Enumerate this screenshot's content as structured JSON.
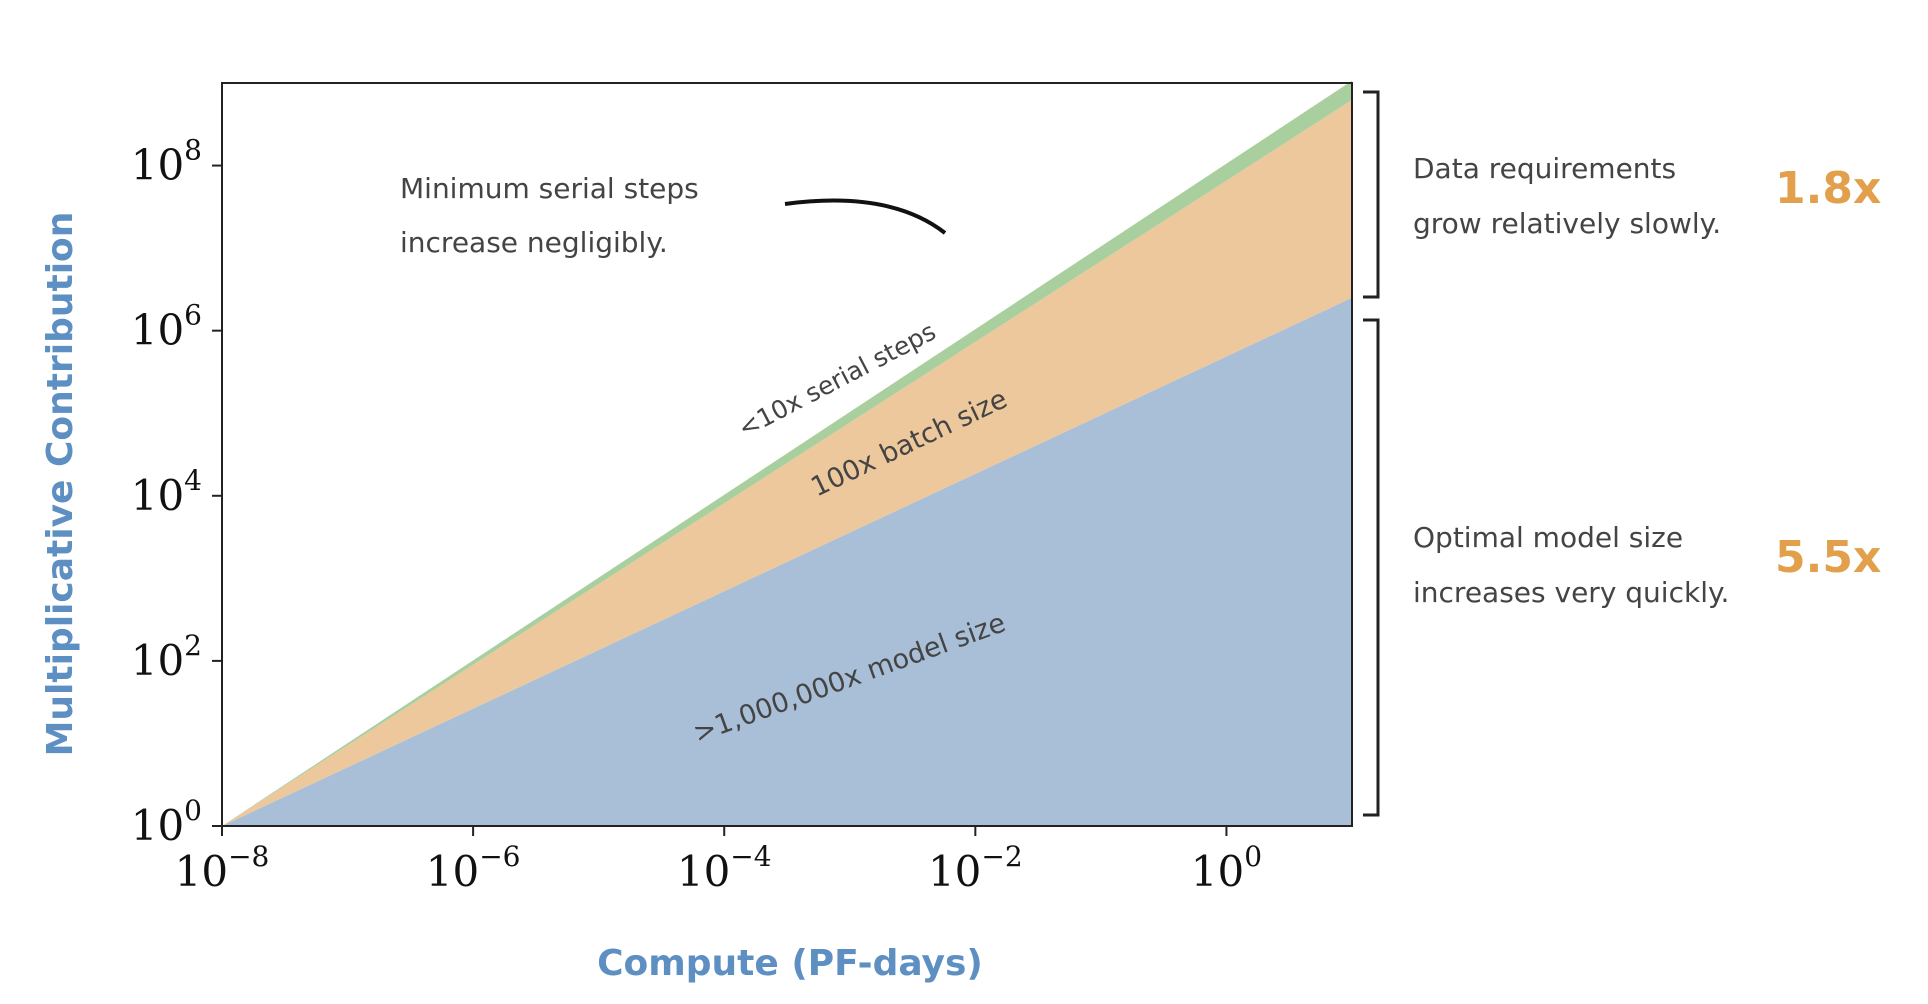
{
  "chart_data": {
    "type": "area",
    "stacked": true,
    "xlabel": "Compute (PF-days)",
    "ylabel": "Multiplicative Contribution",
    "x_scale": "log",
    "y_scale": "log",
    "xlim": [
      1e-08,
      10
    ],
    "ylim": [
      1,
      1000000000.0
    ],
    "grid": false,
    "x_ticks": [
      {
        "value": 1e-08,
        "base": "10",
        "exp": "−8"
      },
      {
        "value": 1e-06,
        "base": "10",
        "exp": "−6"
      },
      {
        "value": 0.0001,
        "base": "10",
        "exp": "−4"
      },
      {
        "value": 0.01,
        "base": "10",
        "exp": "−2"
      },
      {
        "value": 1,
        "base": "10",
        "exp": "0"
      }
    ],
    "y_ticks": [
      {
        "value": 1,
        "base": "10",
        "exp": "0"
      },
      {
        "value": 100,
        "base": "10",
        "exp": "2"
      },
      {
        "value": 10000,
        "base": "10",
        "exp": "4"
      },
      {
        "value": 1000000,
        "base": "10",
        "exp": "6"
      },
      {
        "value": 100000000,
        "base": "10",
        "exp": "8"
      }
    ],
    "x": [
      1e-08,
      10
    ],
    "series": [
      {
        "label": ">1,000,000x model size",
        "values": [
          1,
          2500000
        ],
        "color": "#a9bfd7"
      },
      {
        "label": "100x batch size",
        "values": [
          1,
          250
        ],
        "color": "#ecc89c"
      },
      {
        "label": "<10x serial steps",
        "values": [
          1,
          1.7
        ],
        "color": "#a9cf9f"
      }
    ],
    "annotations": [
      {
        "text_lines": [
          "Minimum serial steps",
          "increase negligibly."
        ]
      },
      {
        "text_lines": [
          "Data requirements",
          "grow relatively slowly."
        ],
        "value": "1.8x"
      },
      {
        "text_lines": [
          "Optimal model size",
          "increases very quickly."
        ],
        "value": "5.5x"
      }
    ]
  },
  "colors": {
    "axis_title": "#5d8fc2",
    "highlight": "#e2a04c"
  }
}
